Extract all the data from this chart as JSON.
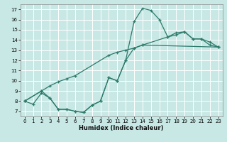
{
  "xlabel": "Humidex (Indice chaleur)",
  "xlim": [
    -0.5,
    23.5
  ],
  "ylim": [
    6.5,
    17.5
  ],
  "xticks": [
    0,
    1,
    2,
    3,
    4,
    5,
    6,
    7,
    8,
    9,
    10,
    11,
    12,
    13,
    14,
    15,
    16,
    17,
    18,
    19,
    20,
    21,
    22,
    23
  ],
  "yticks": [
    7,
    8,
    9,
    10,
    11,
    12,
    13,
    14,
    15,
    16,
    17
  ],
  "background_color": "#c8e8e5",
  "grid_color": "#ffffff",
  "line_color": "#2d7a6b",
  "curve_x": [
    0,
    1,
    2,
    3,
    4,
    5,
    6,
    7,
    8,
    9,
    10,
    11,
    12,
    13,
    14,
    15,
    16,
    17,
    18,
    19,
    20,
    21,
    22,
    23
  ],
  "curve_y": [
    8.0,
    7.7,
    8.8,
    8.3,
    7.2,
    7.2,
    7.0,
    6.9,
    7.6,
    8.0,
    10.3,
    10.0,
    12.0,
    15.8,
    17.1,
    16.9,
    16.0,
    14.3,
    14.7,
    14.8,
    14.1,
    14.1,
    13.8,
    13.3
  ],
  "line_top_x": [
    0,
    2,
    3,
    4,
    5,
    6,
    10,
    11,
    12,
    13,
    14,
    17,
    18,
    19,
    20,
    21,
    22,
    23
  ],
  "line_top_y": [
    8.0,
    9.0,
    9.5,
    9.9,
    10.2,
    10.5,
    12.5,
    12.8,
    13.0,
    13.2,
    13.5,
    14.3,
    14.5,
    14.8,
    14.1,
    14.1,
    13.5,
    13.3
  ],
  "line_bot_x": [
    0,
    2,
    3,
    4,
    5,
    6,
    7,
    8,
    9,
    10,
    11,
    12,
    13,
    14,
    23
  ],
  "line_bot_y": [
    8.0,
    9.0,
    8.3,
    7.2,
    7.2,
    7.0,
    6.9,
    7.6,
    8.0,
    10.3,
    10.0,
    12.0,
    13.2,
    13.5,
    13.3
  ]
}
